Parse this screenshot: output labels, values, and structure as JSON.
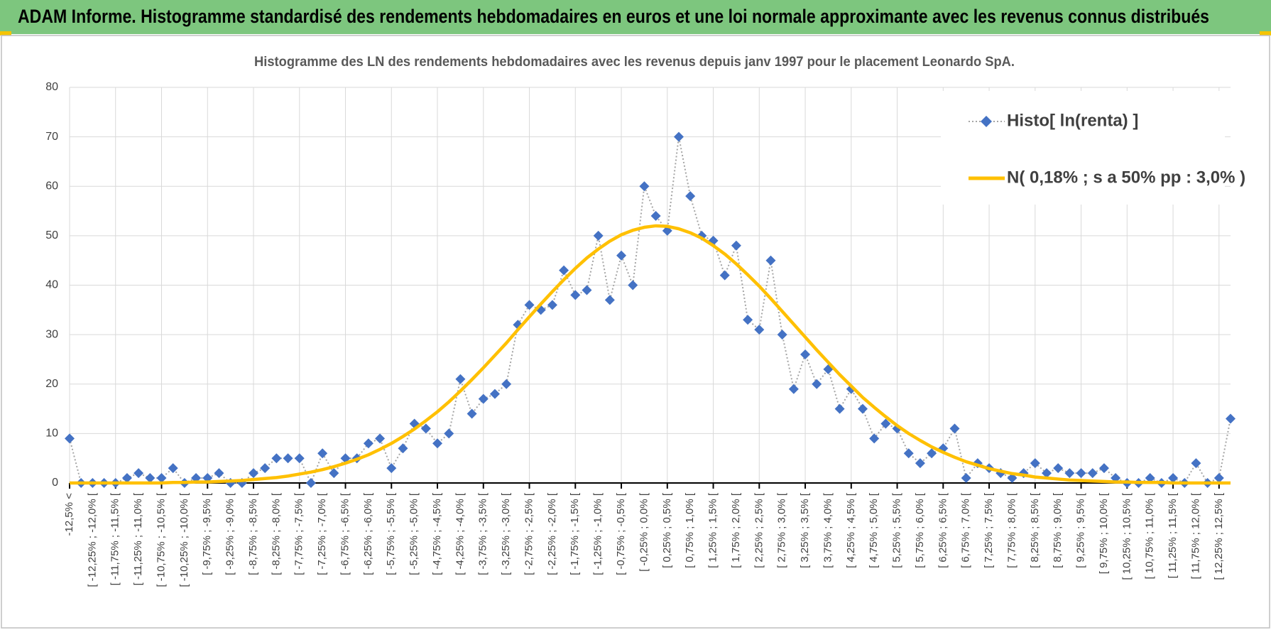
{
  "header": {
    "title": "ADAM Informe. Histogramme standardisé des rendements hebdomadaires en euros et une loi normale approximante avec les revenus connus distribués"
  },
  "chart_data": {
    "type": "line",
    "title": "Histogramme des LN des rendements hebdomadaires avec les revenus depuis janv 1997 pour le placement Leonardo SpA.",
    "categories": [
      "-12,5% <",
      null,
      "[ -12,25% ; -12,0% [",
      null,
      "[ -11,75% ; -11,5% [",
      null,
      "[ -11,25% ; -11,0% [",
      null,
      "[ -10,75% ; -10,5% [",
      null,
      "[ -10,25% ; -10,0% [",
      null,
      "[ -9,75% ; -9,5% [",
      null,
      "[ -9,25% ; -9,0% [",
      null,
      "[ -8,75% ; -8,5% [",
      null,
      "[ -8,25% ; -8,0% [",
      null,
      "[ -7,75% ; -7,5% [",
      null,
      "[ -7,25% ; -7,0% [",
      null,
      "[ -6,75% ; -6,5% [",
      null,
      "[ -6,25% ; -6,0% [",
      null,
      "[ -5,75% ; -5,5% [",
      null,
      "[ -5,25% ; -5,0% [",
      null,
      "[ -4,75% ; -4,5% [",
      null,
      "[ -4,25% ; -4,0% [",
      null,
      "[ -3,75% ; -3,5% [",
      null,
      "[ -3,25% ; -3,0% [",
      null,
      "[ -2,75% ; -2,5% [",
      null,
      "[ -2,25% ; -2,0% [",
      null,
      "[ -1,75% ; -1,5% [",
      null,
      "[ -1,25% ; -1,0% [",
      null,
      "[ -0,75% ; -0,5% [",
      null,
      "[ -0,25% ; 0,0% [",
      null,
      "[ 0,25% ; 0,5% [",
      null,
      "[ 0,75% ; 1,0% [",
      null,
      "[ 1,25% ; 1,5% [",
      null,
      "[ 1,75% ; 2,0% [",
      null,
      "[ 2,25% ; 2,5% [",
      null,
      "[ 2,75% ; 3,0% [",
      null,
      "[ 3,25% ; 3,5% [",
      null,
      "[ 3,75% ; 4,0% [",
      null,
      "[ 4,25% ; 4,5% [",
      null,
      "[ 4,75% ; 5,0% [",
      null,
      "[ 5,25% ; 5,5% [",
      null,
      "[ 5,75% ; 6,0% [",
      null,
      "[ 6,25% ; 6,5% [",
      null,
      "[ 6,75% ; 7,0% [",
      null,
      "[ 7,25% ; 7,5% [",
      null,
      "[ 7,75% ; 8,0% [",
      null,
      "[ 8,25% ; 8,5% [",
      null,
      "[ 8,75% ; 9,0% [",
      null,
      "[ 9,25% ; 9,5% [",
      null,
      "[ 9,75% ; 10,0% [",
      null,
      "[ 10,25% ; 10,5% [",
      null,
      "[ 10,75% ; 11,0% [",
      null,
      "[ 11,25% ; 11,5% [",
      null,
      "[ 11,75% ; 12,0% [",
      null,
      "[ 12,25% ; 12,5% [",
      null
    ],
    "series": [
      {
        "name": "Histo[ ln(renta) ]",
        "color": "#4472c4",
        "line_color": "#a5a5a5",
        "marker": "diamond",
        "values": [
          9,
          0,
          0,
          0,
          0,
          1,
          2,
          1,
          1,
          3,
          0,
          1,
          1,
          2,
          0,
          0,
          2,
          3,
          5,
          5,
          5,
          0,
          6,
          2,
          5,
          5,
          8,
          9,
          3,
          7,
          12,
          11,
          8,
          10,
          21,
          14,
          17,
          18,
          20,
          32,
          36,
          35,
          36,
          43,
          38,
          39,
          50,
          37,
          46,
          40,
          60,
          54,
          51,
          70,
          58,
          50,
          49,
          42,
          48,
          33,
          31,
          45,
          30,
          19,
          26,
          20,
          23,
          15,
          19,
          15,
          9,
          12,
          11,
          6,
          4,
          6,
          7,
          11,
          1,
          4,
          3,
          2,
          1,
          2,
          4,
          2,
          3,
          2,
          2,
          2,
          3,
          1,
          0,
          0,
          1,
          0,
          1,
          0,
          4,
          0,
          1,
          13
        ]
      },
      {
        "name": "N( 0,18% ; s a 50% pp : 3,0% )",
        "color": "#ffc000",
        "values": [
          0,
          0,
          0,
          0,
          0,
          0,
          0,
          0,
          0,
          0.1,
          0.1,
          0.2,
          0.2,
          0.3,
          0.4,
          0.5,
          0.7,
          0.9,
          1.1,
          1.4,
          1.8,
          2.2,
          2.7,
          3.3,
          4.0,
          4.8,
          5.7,
          6.8,
          8.0,
          9.4,
          10.9,
          12.6,
          14.4,
          16.4,
          18.6,
          20.9,
          23.3,
          25.8,
          28.3,
          31.0,
          33.6,
          36.2,
          38.7,
          41.1,
          43.4,
          45.5,
          47.3,
          48.9,
          50.2,
          51.1,
          51.7,
          52.0,
          51.9,
          51.4,
          50.6,
          49.5,
          48.0,
          46.3,
          44.3,
          42.1,
          39.8,
          37.3,
          34.7,
          32.1,
          29.5,
          26.9,
          24.4,
          21.9,
          19.6,
          17.3,
          15.3,
          13.4,
          11.6,
          10.0,
          8.6,
          7.3,
          6.2,
          5.2,
          4.3,
          3.6,
          2.9,
          2.4,
          1.9,
          1.6,
          1.2,
          1.0,
          0.8,
          0.6,
          0.5,
          0.4,
          0.3,
          0.2,
          0.2,
          0.1,
          0.1,
          0.1,
          0,
          0,
          0,
          0,
          0,
          0
        ]
      }
    ],
    "ylim": [
      0,
      80
    ],
    "yticks": [
      0,
      10,
      20,
      30,
      40,
      50,
      60,
      70,
      80
    ],
    "grid": true,
    "legend": "upper right"
  }
}
